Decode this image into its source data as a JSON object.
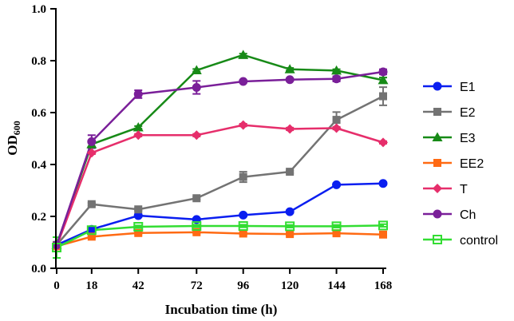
{
  "chart_data": {
    "type": "line",
    "title": "",
    "xlabel": "Incubation time (h)",
    "ylabel_main": "OD",
    "ylabel_sub": "600",
    "x": [
      0,
      18,
      42,
      72,
      96,
      120,
      144,
      168
    ],
    "xticks": [
      "0",
      "18",
      "42",
      "72",
      "96",
      "120",
      "144",
      "168"
    ],
    "ylim": [
      0.0,
      1.0
    ],
    "yticks": [
      "0.0",
      "0.2",
      "0.4",
      "0.6",
      "0.8",
      "1.0"
    ],
    "legend_position": "right",
    "series": [
      {
        "name": "E1",
        "color": "#0a1ef0",
        "marker": "circle",
        "values": [
          0.09,
          0.15,
          0.203,
          0.188,
          0.205,
          0.218,
          0.322,
          0.327
        ],
        "errors": [
          0.01,
          0.005,
          0.005,
          0.005,
          0.005,
          0.005,
          0.005,
          0.005
        ]
      },
      {
        "name": "E2",
        "color": "#737373",
        "marker": "square",
        "values": [
          0.09,
          0.247,
          0.227,
          0.27,
          0.352,
          0.372,
          0.572,
          0.663
        ],
        "errors": [
          0.01,
          0.005,
          0.005,
          0.005,
          0.02,
          0.005,
          0.03,
          0.035
        ]
      },
      {
        "name": "E3",
        "color": "#178a17",
        "marker": "triangle",
        "values": [
          0.09,
          0.478,
          0.543,
          0.763,
          0.822,
          0.767,
          0.762,
          0.725
        ],
        "errors": [
          0.01,
          0.01,
          0.005,
          0.005,
          0.005,
          0.005,
          0.005,
          0.01
        ]
      },
      {
        "name": "EE2",
        "color": "#ff6a13",
        "marker": "square",
        "values": [
          0.085,
          0.122,
          0.136,
          0.139,
          0.134,
          0.132,
          0.135,
          0.13
        ],
        "errors": [
          0.01,
          0.005,
          0.005,
          0.005,
          0.005,
          0.005,
          0.005,
          0.005
        ]
      },
      {
        "name": "T",
        "color": "#e62e6b",
        "marker": "diamond",
        "values": [
          0.085,
          0.445,
          0.513,
          0.513,
          0.552,
          0.537,
          0.54,
          0.485
        ],
        "errors": [
          0.01,
          0.005,
          0.005,
          0.005,
          0.005,
          0.005,
          0.005,
          0.005
        ]
      },
      {
        "name": "Ch",
        "color": "#7a1f99",
        "marker": "circle",
        "values": [
          0.09,
          0.488,
          0.671,
          0.697,
          0.72,
          0.727,
          0.73,
          0.757
        ],
        "errors": [
          0.01,
          0.025,
          0.015,
          0.025,
          0.005,
          0.005,
          0.01,
          0.01
        ]
      },
      {
        "name": "control",
        "color": "#33dd33",
        "marker": "open-square",
        "values": [
          0.08,
          0.147,
          0.16,
          0.163,
          0.163,
          0.162,
          0.162,
          0.165
        ],
        "errors": [
          0.04,
          0.005,
          0.005,
          0.005,
          0.005,
          0.005,
          0.005,
          0.005
        ]
      }
    ]
  }
}
